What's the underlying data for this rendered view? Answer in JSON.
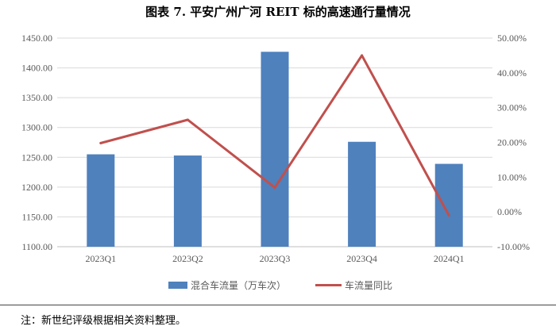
{
  "title": "图表 7.   平安广州广河 REIT 标的高速通行量情况",
  "note": "注：新世纪评级根据相关资料整理。",
  "colors": {
    "bar": "#4F81BD",
    "line": "#C0504D",
    "grid": "#D9D9D9",
    "axis": "#BFBFBF"
  },
  "chart_data": {
    "type": "bar+line",
    "title": "图表 7.   平安广州广河 REIT 标的高速通行量情况",
    "categories": [
      "2023Q1",
      "2023Q2",
      "2023Q3",
      "2023Q4",
      "2024Q1"
    ],
    "series": [
      {
        "name": "混合车流量（万车次）",
        "type": "bar",
        "axis": "left",
        "values": [
          1255,
          1253,
          1427,
          1276,
          1239
        ]
      },
      {
        "name": "车流量同比",
        "type": "line",
        "axis": "right",
        "values": [
          19.8,
          26.5,
          7.0,
          45.0,
          -1.0
        ]
      }
    ],
    "y_left": {
      "min": 1100,
      "max": 1450,
      "step": 50,
      "tick_labels": [
        "1100.00",
        "1150.00",
        "1200.00",
        "1250.00",
        "1300.00",
        "1350.00",
        "1400.00",
        "1450.00"
      ]
    },
    "y_right": {
      "min": -10,
      "max": 50,
      "step": 10,
      "tick_labels": [
        "-10.00%",
        "0.00%",
        "10.00%",
        "20.00%",
        "30.00%",
        "40.00%",
        "50.00%"
      ]
    },
    "grid": true,
    "legend": "bottom"
  }
}
